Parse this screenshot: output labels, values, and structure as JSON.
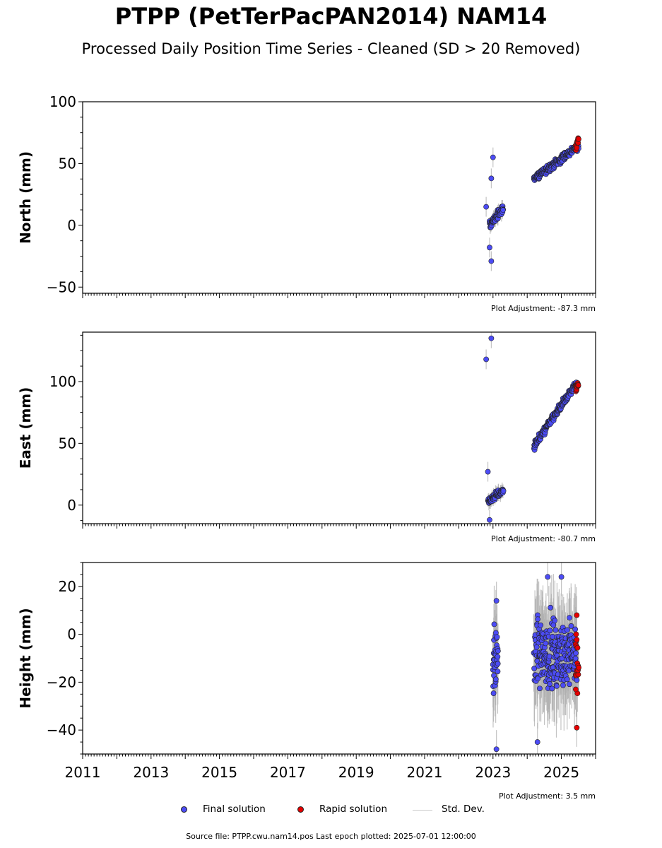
{
  "title": "PTPP (PetTerPacPAN2014) NAM14",
  "subtitle": "Processed Daily Position Time Series - Cleaned (SD > 20 Removed)",
  "legend": {
    "final": "Final solution",
    "rapid": "Rapid solution",
    "stddev": "Std. Dev."
  },
  "source": "Source file: PTPP.cwu.nam14.pos  Last epoch plotted: 2025-07-01 12:00:00",
  "colors": {
    "final": "#4c4cf5",
    "rapid": "#e60000",
    "stddev": "#b0b0b0",
    "marker_edge": "#222222"
  },
  "chart_data": [
    {
      "type": "scatter",
      "panel": "north",
      "ylabel": "North (mm)",
      "ylim": [
        -55,
        100
      ],
      "yticks": [
        -50,
        0,
        50,
        100
      ],
      "xlim": [
        2011,
        2026
      ],
      "adjustment": "Plot Adjustment: -87.3 mm",
      "series": [
        {
          "name": "Final solution",
          "segments": [
            {
              "x": [
                2022.9,
                2023.3
              ],
              "y": [
                0,
                14
              ],
              "err": 4
            },
            {
              "x": [
                2024.2,
                2025.5
              ],
              "y": [
                38,
                64
              ],
              "err": 2
            }
          ],
          "outliers": [
            [
              2023.0,
              55
            ],
            [
              2022.95,
              38
            ],
            [
              2022.95,
              -29
            ],
            [
              2022.9,
              -18
            ],
            [
              2022.8,
              15
            ]
          ]
        },
        {
          "name": "Rapid solution",
          "segments": [
            {
              "x": [
                2025.42,
                2025.5
              ],
              "y": [
                63,
                71
              ],
              "err": 2
            }
          ]
        }
      ]
    },
    {
      "type": "scatter",
      "panel": "east",
      "ylabel": "East (mm)",
      "ylim": [
        -15,
        140
      ],
      "yticks": [
        0,
        50,
        100
      ],
      "xlim": [
        2011,
        2026
      ],
      "adjustment": "Plot Adjustment: -80.7 mm",
      "series": [
        {
          "name": "Final solution",
          "segments": [
            {
              "x": [
                2022.85,
                2023.3
              ],
              "y": [
                3,
                12
              ],
              "err": 4
            },
            {
              "x": [
                2024.2,
                2025.45
              ],
              "y": [
                48,
                99
              ],
              "err": 2
            }
          ],
          "outliers": [
            [
              2022.8,
              118
            ],
            [
              2022.95,
              135
            ],
            [
              2022.85,
              27
            ],
            [
              2022.9,
              -12
            ]
          ]
        },
        {
          "name": "Rapid solution",
          "segments": [
            {
              "x": [
                2025.42,
                2025.5
              ],
              "y": [
                95,
                98
              ],
              "err": 2
            }
          ]
        }
      ]
    },
    {
      "type": "scatter",
      "panel": "height",
      "ylabel": "Height (mm)",
      "ylim": [
        -50,
        30
      ],
      "yticks": [
        -40,
        -20,
        0,
        20
      ],
      "xlim": [
        2011,
        2026
      ],
      "xticks": [
        2011,
        2013,
        2015,
        2017,
        2019,
        2021,
        2023,
        2025
      ],
      "adjustment": "Plot Adjustment: 3.5 mm",
      "series": [
        {
          "name": "Final solution",
          "segments": [
            {
              "x": [
                2023.0,
                2023.15
              ],
              "y": [
                -10,
                -10
              ],
              "err": 12
            },
            {
              "x": [
                2024.2,
                2025.45
              ],
              "y": [
                -8,
                -8
              ],
              "err": 15
            }
          ],
          "outliers": [
            [
              2023.1,
              -48
            ],
            [
              2024.3,
              -45
            ],
            [
              2023.1,
              14
            ],
            [
              2024.6,
              24
            ],
            [
              2025.0,
              24
            ]
          ]
        },
        {
          "name": "Rapid solution",
          "segments": [
            {
              "x": [
                2025.42,
                2025.5
              ],
              "y": [
                -12,
                -12
              ],
              "err": 8
            }
          ],
          "outliers": [
            [
              2025.45,
              8
            ],
            [
              2025.45,
              -39
            ],
            [
              2025.42,
              -23
            ]
          ]
        }
      ]
    }
  ]
}
